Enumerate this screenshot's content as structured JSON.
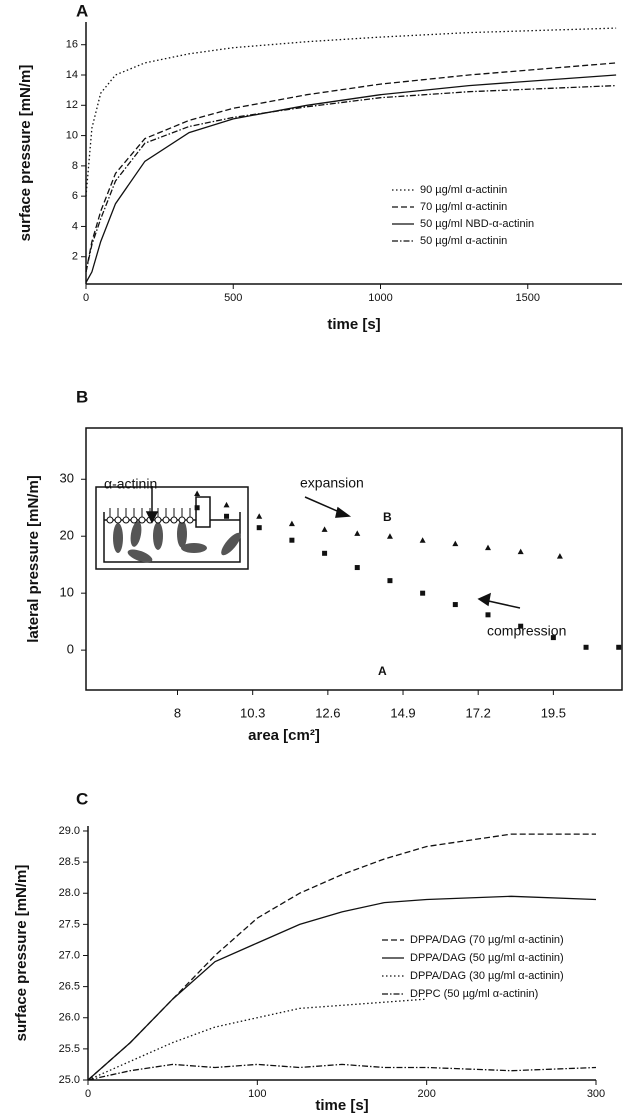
{
  "chart_data": [
    {
      "type": "line",
      "title": "A",
      "x_label": "time [s]",
      "y_label": "surface pressure [mN/m]",
      "xlim": [
        0,
        1820
      ],
      "ylim": [
        0.2,
        17.5
      ],
      "xticks": [
        0,
        500,
        1000,
        1500
      ],
      "yticks": [
        2,
        4,
        6,
        8,
        10,
        12,
        14,
        16
      ],
      "legend": "center right",
      "x": [
        0,
        20,
        50,
        100,
        200,
        350,
        500,
        750,
        1000,
        1300,
        1800
      ],
      "series": [
        {
          "name": "90 µg/ml α-actinin",
          "color": "#111111",
          "style": "dotted",
          "values": [
            6,
            10.5,
            12.8,
            14,
            14.8,
            15.4,
            15.8,
            16.2,
            16.5,
            16.8,
            17.1
          ]
        },
        {
          "name": "70 µg/ml α-actinin",
          "color": "#111111",
          "style": "dashed",
          "values": [
            1,
            3,
            5,
            7.5,
            9.8,
            11,
            11.8,
            12.7,
            13.4,
            14,
            14.8
          ]
        },
        {
          "name": "50 µg/ml NBD-α-actinin",
          "color": "#111111",
          "style": "solid",
          "values": [
            0.3,
            1,
            3,
            5.5,
            8.3,
            10.2,
            11.1,
            12,
            12.7,
            13.3,
            14
          ]
        },
        {
          "name": "50 µg/ml α-actinin",
          "color": "#111111",
          "style": "dashdot",
          "values": [
            1,
            2.8,
            4.5,
            7,
            9.5,
            10.6,
            11.2,
            11.9,
            12.5,
            12.9,
            13.3
          ]
        }
      ]
    },
    {
      "type": "scatter",
      "title": "B",
      "x_label": "area [cm²]",
      "y_label": "lateral pressure [mN/m]",
      "xlim": [
        5.2,
        21.6
      ],
      "ylim": [
        -7,
        39
      ],
      "xticks": [
        8,
        10.3,
        12.6,
        14.9,
        17.2,
        19.5
      ],
      "yticks": [
        0,
        10,
        20,
        30
      ],
      "annotations": [
        "α-actinin",
        "expansion",
        "compression"
      ],
      "series": [
        {
          "name": "B",
          "color": "#111111",
          "marker": "triangle",
          "x": [
            8.6,
            9.5,
            10.5,
            11.5,
            12.5,
            13.5,
            14.5,
            15.5,
            16.5,
            17.5,
            18.5,
            19.7
          ],
          "values": [
            27.5,
            25.5,
            23.5,
            22.2,
            21.2,
            20.5,
            20,
            19.3,
            18.7,
            18,
            17.3,
            16.5
          ]
        },
        {
          "name": "A",
          "color": "#111111",
          "marker": "square",
          "x": [
            8.6,
            9.5,
            10.5,
            11.5,
            12.5,
            13.5,
            14.5,
            15.5,
            16.5,
            17.5,
            18.5,
            19.5,
            20.5,
            21.5
          ],
          "values": [
            25,
            23.5,
            21.5,
            19.3,
            17,
            14.5,
            12.2,
            10,
            8,
            6.2,
            4.2,
            2.2,
            0.5,
            0.5
          ]
        }
      ]
    },
    {
      "type": "line",
      "title": "C",
      "x_label": "time [s]",
      "y_label": "surface pressure [mN/m]",
      "xlim": [
        0,
        300
      ],
      "ylim": [
        25,
        29.08
      ],
      "xticks": [
        0,
        100,
        200,
        300
      ],
      "yticks": [
        {
          "value": 25,
          "label": "25.0"
        },
        {
          "value": 25.5,
          "label": "25.5"
        },
        {
          "value": 26,
          "label": "26.0"
        },
        {
          "value": 26.5,
          "label": "26.5"
        },
        {
          "value": 27,
          "label": "27.0"
        },
        {
          "value": 27.5,
          "label": "27.5"
        },
        {
          "value": 28,
          "label": "28.0"
        },
        {
          "value": 28.5,
          "label": "28.5"
        },
        {
          "value": 29,
          "label": "29.0"
        }
      ],
      "legend": "center right",
      "x": [
        0,
        25,
        50,
        75,
        100,
        125,
        150,
        175,
        200,
        250,
        300
      ],
      "series": [
        {
          "name": "DPPA/DAG (70 µg/ml α-actinin)",
          "color": "#111111",
          "style": "dashed",
          "values": [
            25,
            25.6,
            26.3,
            27,
            27.6,
            28,
            28.3,
            28.55,
            28.75,
            28.95,
            28.95
          ]
        },
        {
          "name": "DPPA/DAG (50 µg/ml α-actinin)",
          "color": "#111111",
          "style": "solid",
          "values": [
            25,
            25.6,
            26.3,
            26.9,
            27.2,
            27.5,
            27.7,
            27.85,
            27.9,
            27.95,
            27.9
          ]
        },
        {
          "name": "DPPA/DAG (30 µg/ml α-actinin)",
          "color": "#111111",
          "style": "dotted",
          "values": [
            25,
            25.3,
            25.6,
            25.85,
            26,
            26.15,
            26.2,
            26.25,
            26.3,
            null,
            null
          ]
        },
        {
          "name": "DPPC (50 µg/ml α-actinin)",
          "color": "#111111",
          "style": "dashdot",
          "values": [
            25,
            25.15,
            25.25,
            25.2,
            25.25,
            25.2,
            25.25,
            25.2,
            25.2,
            25.15,
            25.2
          ]
        }
      ]
    }
  ]
}
